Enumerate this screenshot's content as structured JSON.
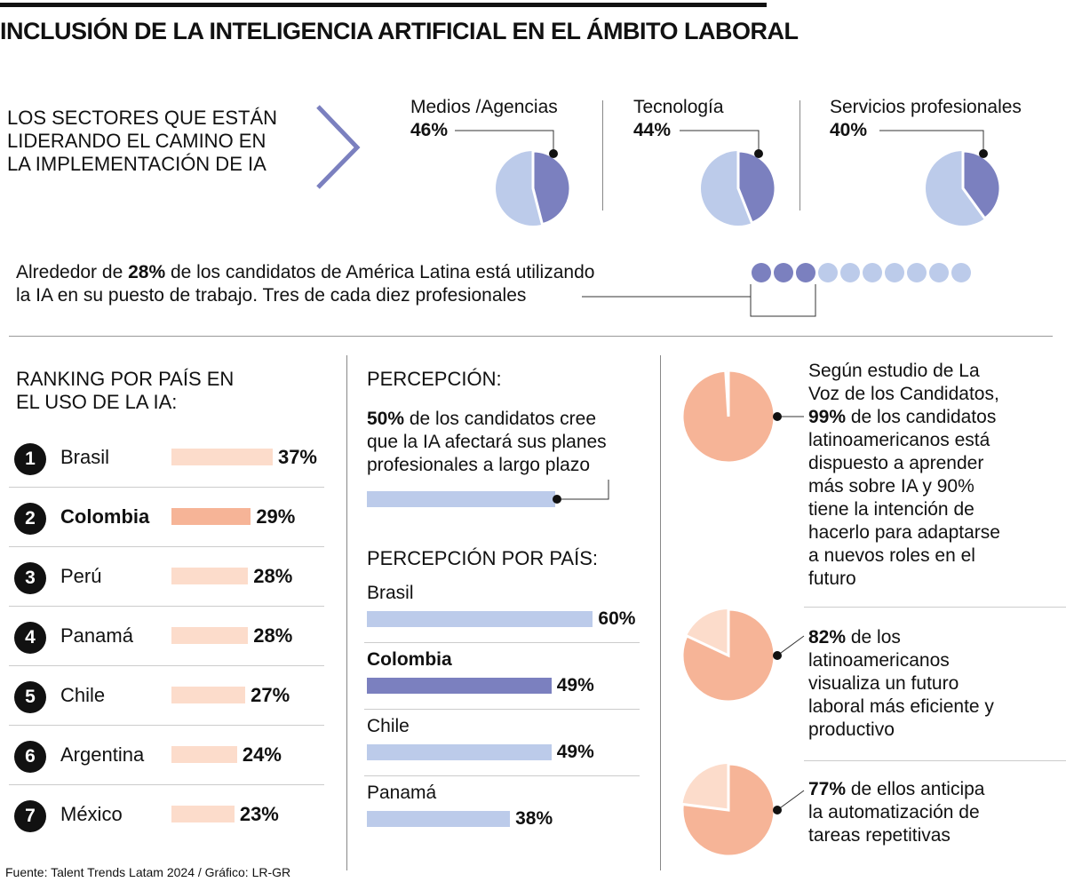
{
  "title": "INCLUSIÓN DE LA INTELIGENCIA ARTIFICIAL EN EL ÁMBITO LABORAL",
  "colors": {
    "dark_purple": "#7b80bf",
    "light_blue": "#bccbea",
    "peach_dark": "#f6b497",
    "peach_light": "#fcdccb"
  },
  "sectors_heading": [
    "LOS SECTORES QUE ESTÁN",
    "LIDERANDO EL CAMINO EN",
    "LA IMPLEMENTACIÓN DE IA"
  ],
  "chart_data": [
    {
      "type": "pie",
      "categories": [
        "Medios /Agencias",
        "Tecnología",
        "Servicios profesionales"
      ],
      "values": [
        46,
        44,
        40
      ],
      "labels": [
        "46%",
        "44%",
        "40%"
      ]
    },
    {
      "type": "dots",
      "total": 10,
      "highlighted": 3
    },
    {
      "type": "bar",
      "title": "RANKING POR PAÍS EN EL USO DE LA IA:",
      "categories": [
        "Brasil",
        "Colombia",
        "Perú",
        "Panamá",
        "Chile",
        "Argentina",
        "México"
      ],
      "values": [
        37,
        29,
        28,
        28,
        27,
        24,
        23
      ],
      "labels": [
        "37%",
        "29%",
        "28%",
        "28%",
        "27%",
        "24%",
        "23%"
      ],
      "highlight": "Colombia"
    },
    {
      "type": "bar",
      "title": "PERCEPCIÓN:",
      "categories": [
        ""
      ],
      "values": [
        50
      ]
    },
    {
      "type": "bar",
      "title": "PERCEPCIÓN POR PAÍS:",
      "categories": [
        "Brasil",
        "Colombia",
        "Chile",
        "Panamá"
      ],
      "values": [
        60,
        49,
        49,
        38
      ],
      "labels": [
        "60%",
        "49%",
        "49%",
        "38%"
      ],
      "highlight": "Colombia"
    },
    {
      "type": "pie",
      "values": [
        99,
        82,
        77
      ]
    }
  ],
  "latam": {
    "pre": "Alrededor de ",
    "bold": "28%",
    "post": " de los candidatos de América Latina está utilizando",
    "line2": "la IA en su puesto de trabajo. Tres de cada diez profesionales"
  },
  "ranking_title": [
    "RANKING POR PAÍS EN",
    "EL USO DE LA IA:"
  ],
  "perception": {
    "title": "PERCEPCIÓN:",
    "bold": "50%",
    "text1": " de los candidatos cree",
    "text2": "que la IA afectará sus planes",
    "text3": "profesionales a largo plazo",
    "country_title": "PERCEPCIÓN POR PAÍS:"
  },
  "right": {
    "p1": [
      "Según estudio de La",
      "Voz de los Candidatos,"
    ],
    "p1_bold": "99%",
    "p1_rest": " de los candidatos",
    "p1_more": [
      "latinoamericanos está",
      "dispuesto a aprender",
      "más sobre IA y 90%",
      "tiene la intención de",
      "hacerlo para adaptarse",
      "a nuevos roles en el",
      "futuro"
    ],
    "p2_bold": "82%",
    "p2_rest": " de los",
    "p2_more": [
      "latinoamericanos",
      "visualiza un futuro",
      "laboral más eficiente y",
      "productivo"
    ],
    "p3_bold": "77%",
    "p3_rest": " de ellos anticipa",
    "p3_more": [
      "la automatización de",
      "tareas repetitivas"
    ]
  },
  "source": "Fuente: Talent Trends Latam 2024 / Gráfico: LR-GR"
}
